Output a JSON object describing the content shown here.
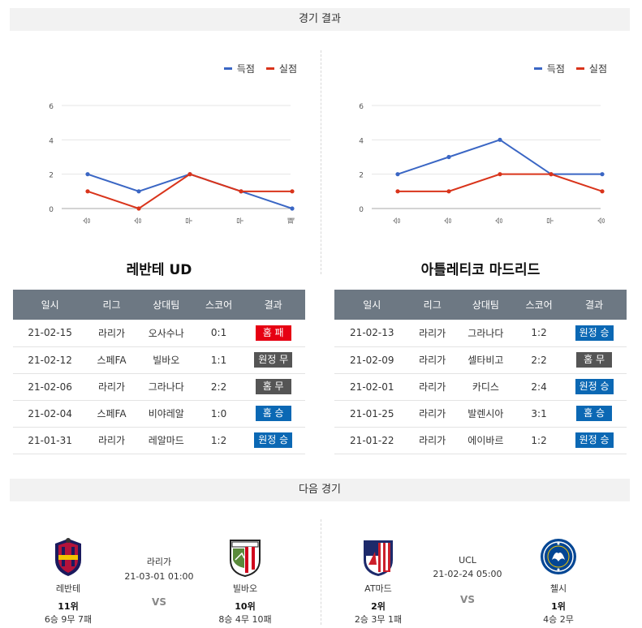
{
  "sections": {
    "results_title": "경기 결과",
    "next_title": "다음 경기"
  },
  "legend": {
    "scored": "득점",
    "conceded": "실점",
    "scored_color": "#3a66c4",
    "conceded_color": "#d9341b"
  },
  "chart_data": [
    {
      "type": "line",
      "categories": [
        "승",
        "승",
        "무",
        "무",
        "패"
      ],
      "yticks": [
        0,
        2,
        4,
        6
      ],
      "ylim": [
        0,
        6
      ],
      "series": [
        {
          "name": "득점",
          "values": [
            2,
            1,
            2,
            1,
            0
          ]
        },
        {
          "name": "실점",
          "values": [
            1,
            0,
            2,
            1,
            1
          ]
        }
      ]
    },
    {
      "type": "line",
      "categories": [
        "승",
        "승",
        "승",
        "무",
        "승"
      ],
      "yticks": [
        0,
        2,
        4,
        6
      ],
      "ylim": [
        0,
        6
      ],
      "series": [
        {
          "name": "득점",
          "values": [
            2,
            3,
            4,
            2,
            2
          ]
        },
        {
          "name": "실점",
          "values": [
            1,
            1,
            2,
            2,
            1
          ]
        }
      ]
    }
  ],
  "columns": [
    "일시",
    "리그",
    "상대팀",
    "스코어",
    "결과"
  ],
  "teams": [
    {
      "name": "레반테 UD",
      "rows": [
        {
          "date": "21-02-15",
          "league": "라리가",
          "opponent": "오사수나",
          "score": "0:1",
          "result": "홈 패",
          "color": "#e60012"
        },
        {
          "date": "21-02-12",
          "league": "스페FA",
          "opponent": "빌바오",
          "score": "1:1",
          "result": "원정 무",
          "color": "#555555"
        },
        {
          "date": "21-02-06",
          "league": "라리가",
          "opponent": "그라나다",
          "score": "2:2",
          "result": "홈 무",
          "color": "#555555"
        },
        {
          "date": "21-02-04",
          "league": "스페FA",
          "opponent": "비야레알",
          "score": "1:0",
          "result": "홈 승",
          "color": "#0b68b4"
        },
        {
          "date": "21-01-31",
          "league": "라리가",
          "opponent": "레알마드",
          "score": "1:2",
          "result": "원정 승",
          "color": "#0b68b4"
        }
      ]
    },
    {
      "name": "아틀레티코 마드리드",
      "rows": [
        {
          "date": "21-02-13",
          "league": "라리가",
          "opponent": "그라나다",
          "score": "1:2",
          "result": "원정 승",
          "color": "#0b68b4"
        },
        {
          "date": "21-02-09",
          "league": "라리가",
          "opponent": "셀타비고",
          "score": "2:2",
          "result": "홈 무",
          "color": "#555555"
        },
        {
          "date": "21-02-01",
          "league": "라리가",
          "opponent": "카디스",
          "score": "2:4",
          "result": "원정 승",
          "color": "#0b68b4"
        },
        {
          "date": "21-01-25",
          "league": "라리가",
          "opponent": "발렌시아",
          "score": "3:1",
          "result": "홈 승",
          "color": "#0b68b4"
        },
        {
          "date": "21-01-22",
          "league": "라리가",
          "opponent": "에이바르",
          "score": "1:2",
          "result": "원정 승",
          "color": "#0b68b4"
        }
      ]
    }
  ],
  "next": [
    {
      "league": "라리가",
      "datetime": "21-03-01 01:00",
      "vs": "VS",
      "home": {
        "name": "레반테",
        "rank": "11위",
        "record": "6승 9무 7패",
        "logo": "levante-logo"
      },
      "away": {
        "name": "빌바오",
        "rank": "10위",
        "record": "8승 4무 10패",
        "logo": "athletic-logo"
      }
    },
    {
      "league": "UCL",
      "datetime": "21-02-24 05:00",
      "vs": "VS",
      "home": {
        "name": "AT마드",
        "rank": "2위",
        "record": "2승 3무 1패",
        "logo": "atletico-logo"
      },
      "away": {
        "name": "첼시",
        "rank": "1위",
        "record": "4승 2무",
        "logo": "chelsea-logo"
      }
    }
  ]
}
